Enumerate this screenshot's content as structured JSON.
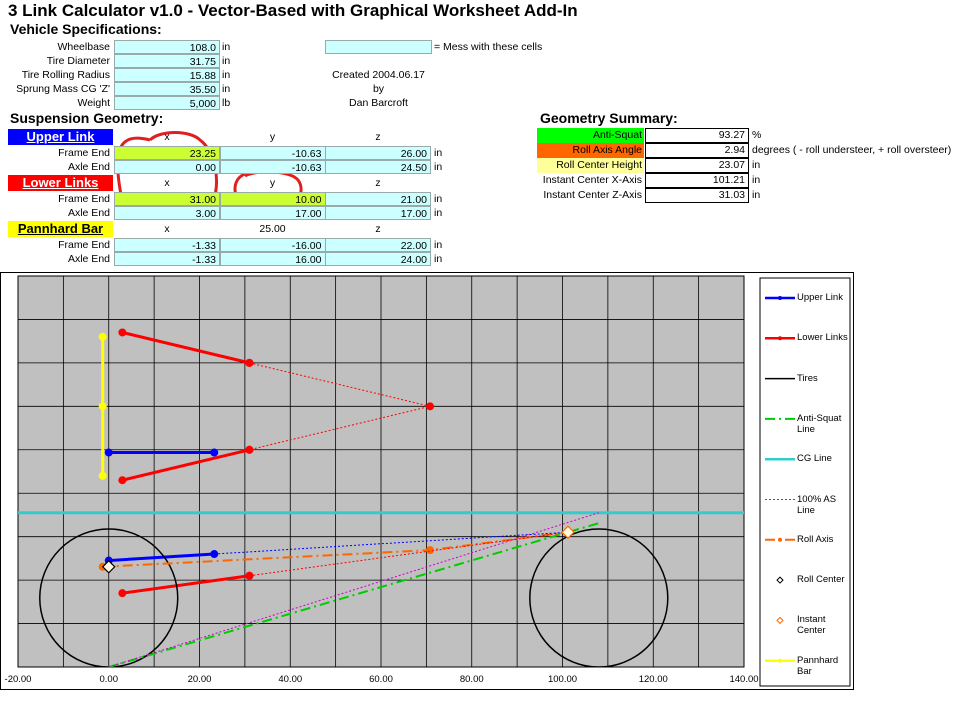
{
  "header": {
    "title": "3 Link Calculator v1.0  -  Vector-Based with Graphical Worksheet Add-In"
  },
  "vehicle": {
    "title": "Vehicle Specifications:",
    "rows": [
      [
        "Wheelbase",
        "108.0",
        "in"
      ],
      [
        "Tire Diameter",
        "31.75",
        "in"
      ],
      [
        "Tire Rolling Radius",
        "15.88",
        "in"
      ],
      [
        "Sprung Mass CG 'Z'",
        "35.50",
        "in"
      ],
      [
        "Weight",
        "5,000",
        "lb"
      ]
    ]
  },
  "note": "= Mess with these cells",
  "credits": [
    "Created 2004.06.17",
    "by",
    "Dan Barcroft"
  ],
  "suspension": {
    "title": "Suspension Geometry:",
    "upper_link": {
      "heading": "Upper Link",
      "columns": [
        "x",
        "y",
        "z"
      ],
      "rows": [
        [
          "Frame End",
          "23.25",
          "-10.63",
          "26.00",
          "in"
        ],
        [
          "Axle End",
          "0.00",
          "-10.63",
          "24.50",
          "in"
        ]
      ]
    },
    "lower_links": {
      "heading": "Lower Links",
      "columns": [
        "x",
        "y",
        "z"
      ],
      "rows": [
        [
          "Frame End",
          "31.00",
          "10.00",
          "21.00",
          "in"
        ],
        [
          "Axle End",
          "3.00",
          "17.00",
          "17.00",
          "in"
        ]
      ]
    },
    "pannhard": {
      "heading": "Pannhard Bar",
      "columns": [
        "x",
        "25.00",
        "z"
      ],
      "rows": [
        [
          "Frame End",
          "-1.33",
          "-16.00",
          "22.00",
          "in"
        ],
        [
          "Axle End",
          "-1.33",
          "16.00",
          "24.00",
          "in"
        ]
      ]
    }
  },
  "summary": {
    "title": "Geometry Summary:",
    "rows": [
      [
        "Anti-Squat",
        "93.27",
        "%"
      ],
      [
        "Roll Axis Angle",
        "2.94",
        "degrees ( - roll understeer, + roll oversteer)"
      ],
      [
        "Roll Center Height",
        "23.07",
        "in"
      ],
      [
        "Instant Center X-Axis",
        "101.21",
        "in"
      ],
      [
        "Instant Center Z-Axis",
        "31.03",
        "in"
      ]
    ]
  },
  "chart_data": {
    "type": "scatter",
    "xlim": [
      -20,
      140
    ],
    "ylim": [
      0,
      90
    ],
    "xticks": [
      {
        "value": -20,
        "label": "-20.00"
      },
      {
        "value": 0,
        "label": "0.00"
      },
      {
        "value": 20,
        "label": "20.00"
      },
      {
        "value": 40,
        "label": "40.00"
      },
      {
        "value": 60,
        "label": "60.00"
      },
      {
        "value": 80,
        "label": "80.00"
      },
      {
        "value": 100,
        "label": "100.00"
      },
      {
        "value": 120,
        "label": "120.00"
      },
      {
        "value": 140,
        "label": "140.00"
      }
    ],
    "yticks": [
      0,
      10,
      20,
      30,
      40,
      50,
      60,
      70,
      80,
      90
    ],
    "ytick_labels": false,
    "grid": true,
    "background": "#c0c0c0",
    "legend": "right",
    "series": [
      {
        "name": "Upper Link",
        "color": "#0000ff",
        "line_style": "solid",
        "marker": "circle",
        "x": [
          0,
          23.25,
          null,
          0,
          23.25
        ],
        "y": [
          49.37,
          49.37,
          null,
          24.5,
          26
        ]
      },
      {
        "name": "Lower Links",
        "color": "#ff0000",
        "line_style": "solid",
        "marker": "circle",
        "x": [
          3,
          31,
          null,
          3,
          31,
          null,
          3,
          31
        ],
        "y": [
          77,
          70,
          null,
          43,
          50,
          null,
          17,
          21
        ]
      },
      {
        "name": "Tires",
        "color": "#000000",
        "line_style": "circle",
        "marker": "none",
        "x": [
          0,
          108
        ],
        "y": [
          15.88,
          15.88
        ],
        "radius": [
          15.88,
          15.88
        ]
      },
      {
        "name": "Anti-Squat Line",
        "color": "#00cc00",
        "line_style": "dashdot",
        "marker": "none",
        "x": [
          0,
          108
        ],
        "y": [
          0,
          33.11
        ]
      },
      {
        "name": "CG Line",
        "color": "#33cccc",
        "line_style": "solid",
        "marker": "none",
        "x": [
          -20,
          140
        ],
        "y": [
          35.5,
          35.5
        ]
      },
      {
        "name": "100% AS Line",
        "color": "#cc00cc",
        "line_style": "dotted",
        "marker": "none",
        "x": [
          0,
          108
        ],
        "y": [
          0,
          35.5
        ]
      },
      {
        "name": "Roll Axis",
        "color": "#ff6600",
        "line_style": "dashdot",
        "marker": "circle",
        "x": [
          -1.33,
          70.8,
          101.21
        ],
        "y": [
          23.07,
          26.9,
          31.03
        ]
      },
      {
        "name": "Roll Center",
        "color": "#000000",
        "line_style": "none",
        "marker": "diamond",
        "x": [
          0
        ],
        "y": [
          23.07
        ]
      },
      {
        "name": "Instant Center",
        "color": "#ff6600",
        "line_style": "none",
        "marker": "diamond",
        "x": [
          101.21
        ],
        "y": [
          31.03
        ]
      },
      {
        "name": "Pannhard Bar",
        "color": "#ffff00",
        "line_style": "solid",
        "marker": "circle",
        "x": [
          -1.33,
          -1.33,
          -1.33
        ],
        "y": [
          44,
          60,
          76
        ]
      },
      {
        "color": "#0000ff",
        "line_style": "dotted",
        "marker": "none",
        "x": [
          23.25,
          101.21
        ],
        "y": [
          26,
          31.03
        ]
      },
      {
        "color": "#ff0000",
        "line_style": "dotted",
        "marker": "circle",
        "x": [
          31,
          70.8,
          31,
          null,
          31,
          101.21
        ],
        "y": [
          70,
          60,
          50,
          null,
          21,
          31.03
        ]
      }
    ]
  }
}
